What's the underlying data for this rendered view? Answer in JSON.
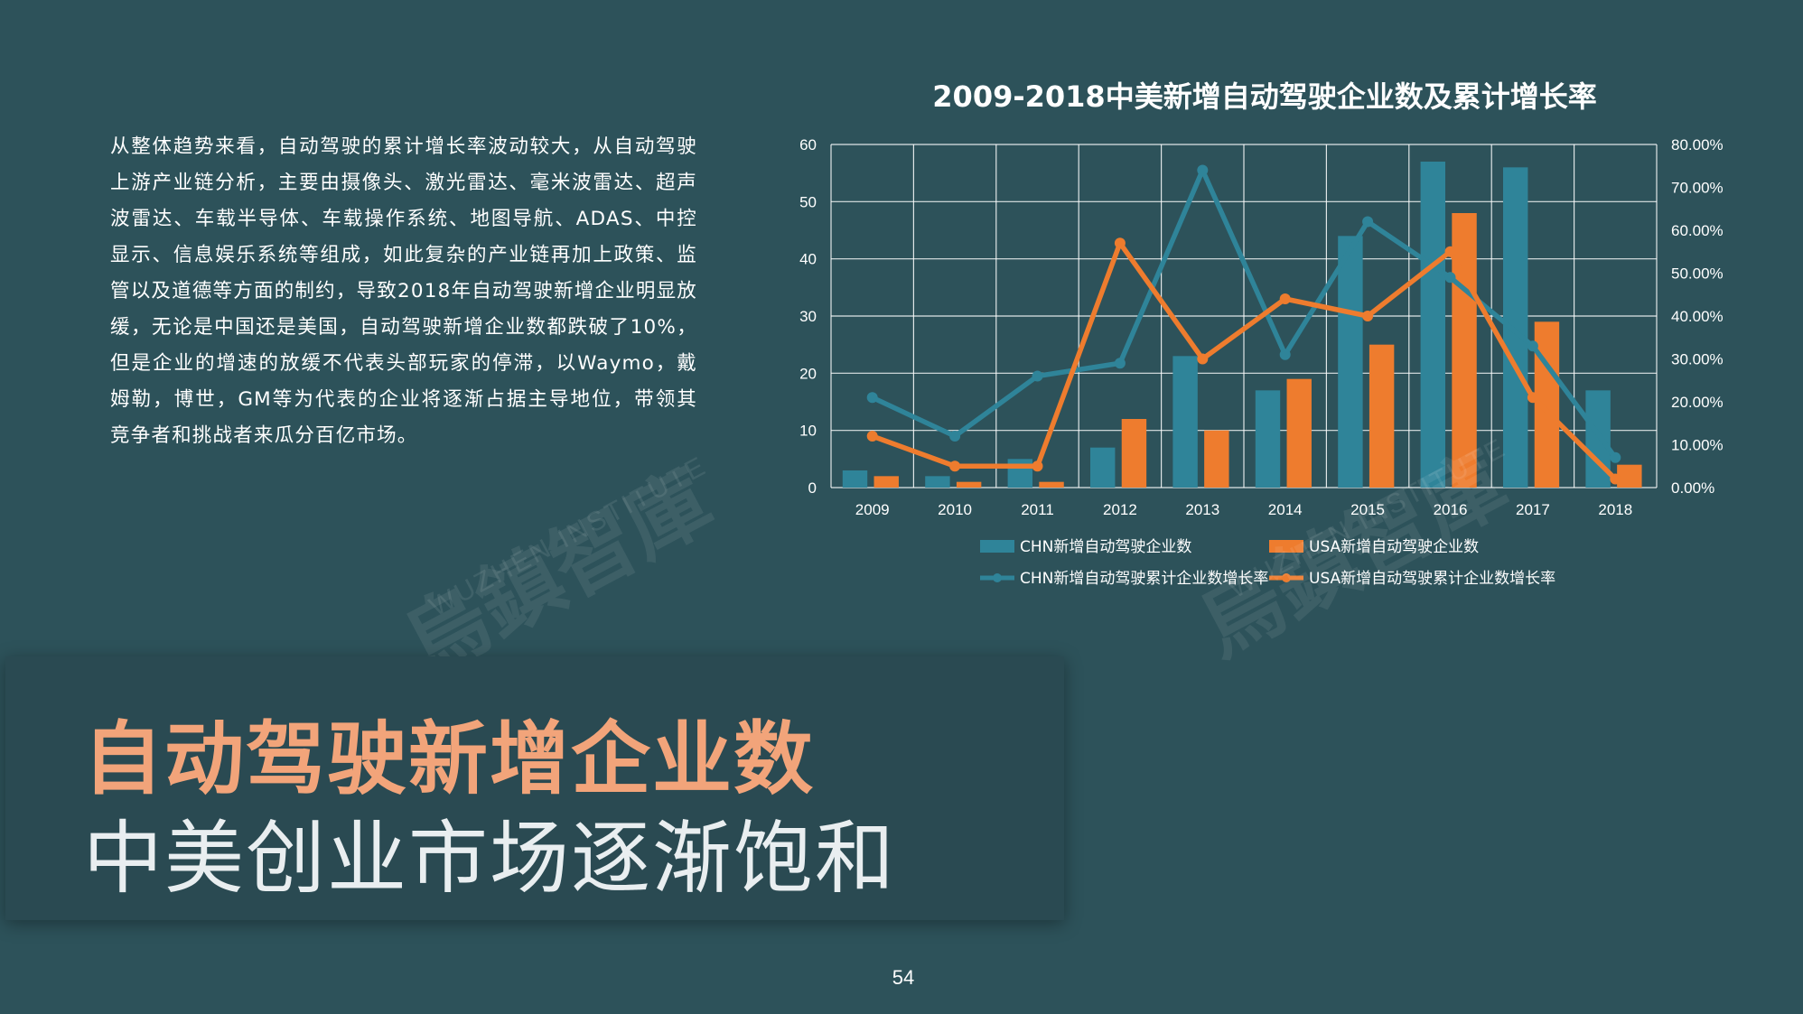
{
  "paragraph": "从整体趋势来看，自动驾驶的累计增长率波动较大，从自动驾驶上游产业链分析，主要由摄像头、激光雷达、毫米波雷达、超声波雷达、车载半导体、车载操作系统、地图导航、ADAS、中控显示、信息娱乐系统等组成，如此复杂的产业链再加上政策、监管以及道德等方面的制约，导致2018年自动驾驶新增企业明显放缓，无论是中国还是美国，自动驾驶新增企业数都跌破了10%，但是企业的增速的放缓不代表头部玩家的停滞，以Waymo，戴姆勒，博世，GM等为代表的企业将逐渐占据主导地位，带领其竞争者和挑战者来瓜分百亿市场。",
  "headline": {
    "main": "自动驾驶新增企业数",
    "sub": "中美创业市场逐渐饱和"
  },
  "page_number": "54",
  "watermark": {
    "chinese": "烏鎮智庫",
    "english": "WUZHEN INSTITUTE"
  },
  "colors": {
    "background": "#2d525a",
    "chn": "#2f8499",
    "usa": "#ee7c2e",
    "headline_accent": "#f2a47a"
  },
  "chart_data": {
    "type": "bar",
    "title": "2009-2018中美新增自动驾驶企业数及累计增长率",
    "categories": [
      "2009",
      "2010",
      "2011",
      "2012",
      "2013",
      "2014",
      "2015",
      "2016",
      "2017",
      "2018"
    ],
    "series": [
      {
        "name": "CHN新增自动驾驶企业数",
        "type": "bar",
        "axis": "left",
        "values": [
          3,
          2,
          5,
          7,
          23,
          17,
          44,
          57,
          56,
          17
        ]
      },
      {
        "name": "USA新增自动驾驶企业数",
        "type": "bar",
        "axis": "left",
        "values": [
          2,
          1,
          1,
          12,
          10,
          19,
          25,
          48,
          29,
          4
        ]
      },
      {
        "name": "CHN新增自动驾驶累计企业数增长率",
        "type": "line",
        "axis": "right",
        "values": [
          0.21,
          0.12,
          0.26,
          0.29,
          0.74,
          0.31,
          0.62,
          0.49,
          0.33,
          0.07
        ]
      },
      {
        "name": "USA新增自动驾驶累计企业数增长率",
        "type": "line",
        "axis": "right",
        "values": [
          0.12,
          0.05,
          0.05,
          0.57,
          0.3,
          0.44,
          0.4,
          0.55,
          0.21,
          0.02
        ]
      }
    ],
    "y_left": {
      "min": 0,
      "max": 60,
      "ticks": [
        "0",
        "10",
        "20",
        "30",
        "40",
        "50",
        "60"
      ]
    },
    "y_right": {
      "min": 0,
      "max": 0.8,
      "ticks": [
        "0.00%",
        "10.00%",
        "20.00%",
        "30.00%",
        "40.00%",
        "50.00%",
        "60.00%",
        "70.00%",
        "80.00%"
      ]
    },
    "grid": true,
    "legend": "bottom"
  }
}
